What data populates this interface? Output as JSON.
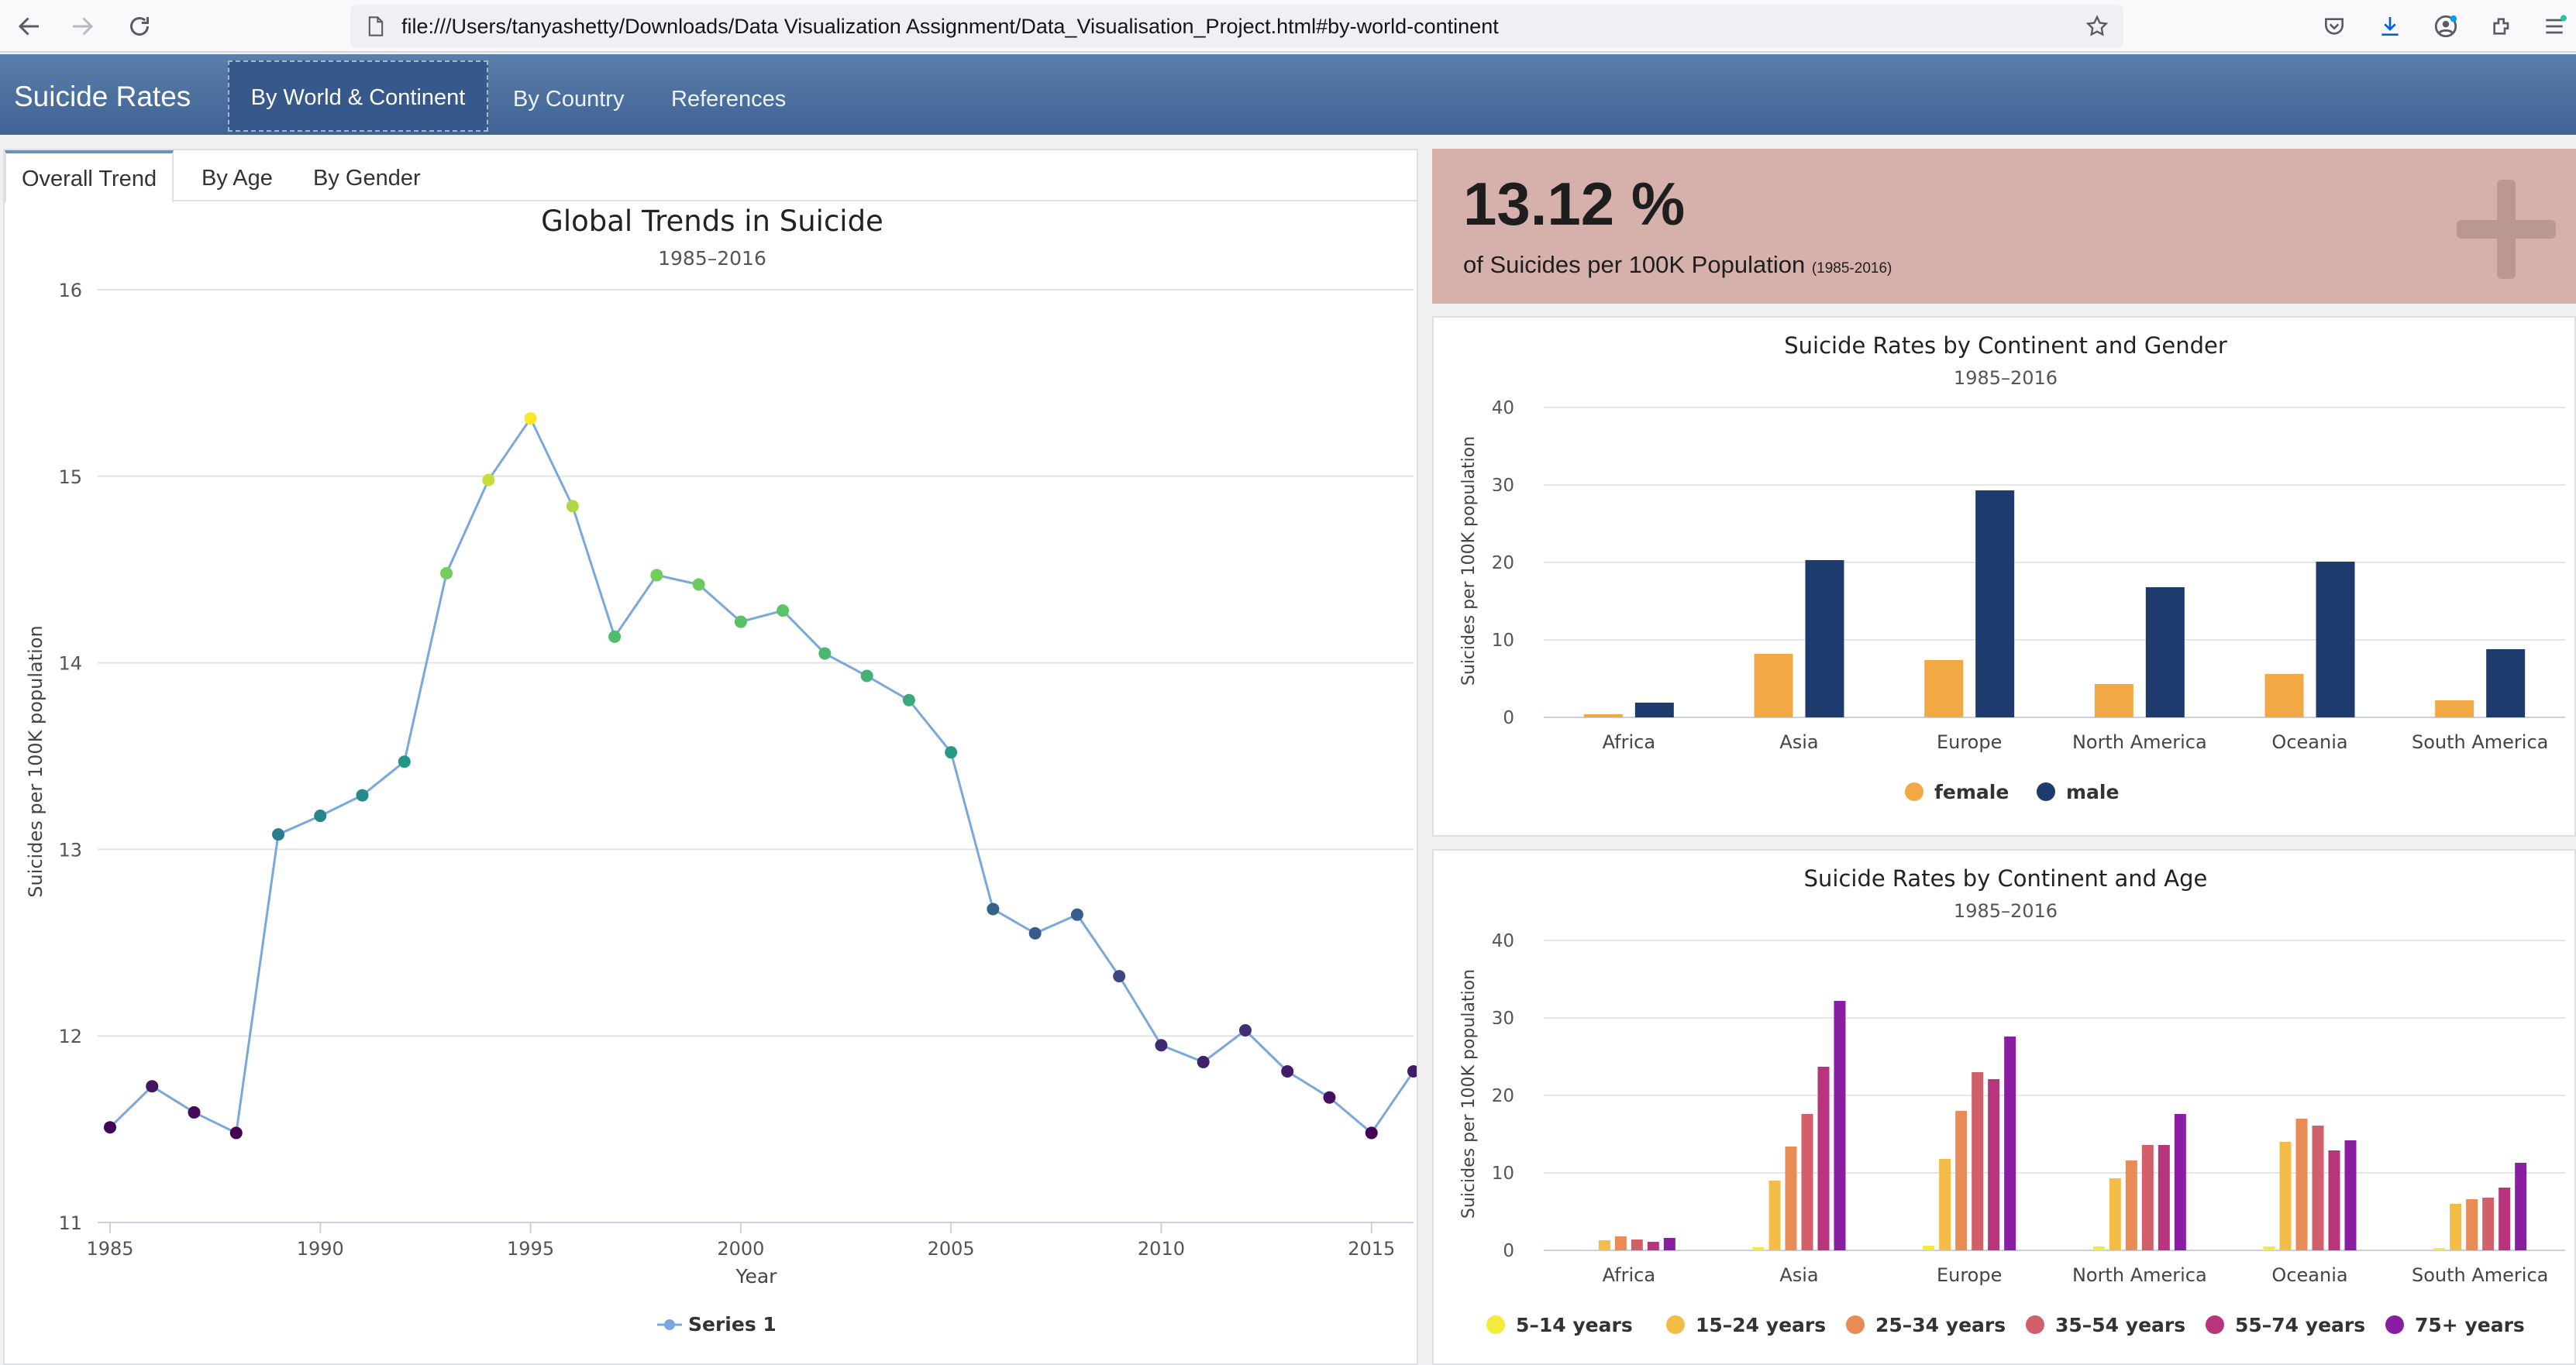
{
  "browser": {
    "url": "file:///Users/tanyashetty/Downloads/Data Visualization Assignment/Data_Visualisation_Project.html#by-world-continent"
  },
  "navbar": {
    "brand": "Suicide Rates",
    "links": [
      "By World & Continent",
      "By Country",
      "References"
    ],
    "active": "By World & Continent"
  },
  "left_panel": {
    "tabs": [
      "Overall Trend",
      "By Age",
      "By Gender"
    ],
    "active_tab": "Overall Trend"
  },
  "stat": {
    "value": "13.12 %",
    "caption": "of Suicides per 100K Population",
    "range": "(1985-2016)"
  },
  "chart_data": [
    {
      "type": "line",
      "title": "Global Trends in Suicide",
      "subtitle": "1985–2016",
      "xlabel": "Year",
      "ylabel": "Suicides per 100K population",
      "xlim": [
        1985,
        2016
      ],
      "ylim": [
        11,
        16
      ],
      "xticks": [
        "1985",
        "1990",
        "1995",
        "2000",
        "2005",
        "2010",
        "2015"
      ],
      "yticks": [
        "11",
        "12",
        "13",
        "14",
        "15",
        "16"
      ],
      "grid": true,
      "legend": "bottom-center",
      "series": [
        {
          "name": "Series 1",
          "x": [
            1985,
            1986,
            1987,
            1988,
            1989,
            1990,
            1991,
            1992,
            1993,
            1994,
            1995,
            1996,
            1997,
            1998,
            1999,
            2000,
            2001,
            2002,
            2003,
            2004,
            2005,
            2006,
            2007,
            2008,
            2009,
            2010,
            2011,
            2012,
            2013,
            2014,
            2015,
            2016
          ],
          "y": [
            11.51,
            11.73,
            11.59,
            11.48,
            13.08,
            13.18,
            13.29,
            13.47,
            14.48,
            14.98,
            15.31,
            14.84,
            14.14,
            14.47,
            14.42,
            14.22,
            14.28,
            14.05,
            13.93,
            13.8,
            13.52,
            12.68,
            12.55,
            12.65,
            12.32,
            11.95,
            11.86,
            12.03,
            11.81,
            11.67,
            11.48,
            11.81
          ]
        }
      ],
      "line_color": "#7aa8dc"
    },
    {
      "type": "bar",
      "title": "Suicide Rates by Continent and Gender",
      "subtitle": "1985–2016",
      "ylabel": "Suicides per 100K population",
      "categories": [
        "Africa",
        "Asia",
        "Europe",
        "North America",
        "Oceania",
        "South America"
      ],
      "ylim": [
        0,
        40
      ],
      "yticks": [
        "0",
        "10",
        "20",
        "30",
        "40"
      ],
      "grid": true,
      "legend": "bottom-center",
      "series": [
        {
          "name": "female",
          "color": "#f3a846",
          "values": [
            0.4,
            8.2,
            7.4,
            4.3,
            5.6,
            2.2
          ]
        },
        {
          "name": "male",
          "color": "#1d3c6d",
          "values": [
            1.9,
            20.3,
            29.3,
            16.8,
            20.1,
            8.8
          ]
        }
      ]
    },
    {
      "type": "bar",
      "title": "Suicide Rates by Continent and Age",
      "subtitle": "1985–2016",
      "ylabel": "Suicides per 100K population",
      "categories": [
        "Africa",
        "Asia",
        "Europe",
        "North America",
        "Oceania",
        "South America"
      ],
      "ylim": [
        0,
        40
      ],
      "yticks": [
        "0",
        "10",
        "20",
        "30",
        "40"
      ],
      "grid": true,
      "legend": "bottom-center",
      "series": [
        {
          "name": "5–14 years",
          "color": "#f4ea3c",
          "values": [
            0.1,
            0.4,
            0.6,
            0.5,
            0.5,
            0.3
          ]
        },
        {
          "name": "15–24 years",
          "color": "#f2bc47",
          "values": [
            1.3,
            9.0,
            11.8,
            9.3,
            14.0,
            6.0
          ]
        },
        {
          "name": "25–34 years",
          "color": "#e98b55",
          "values": [
            1.8,
            13.4,
            18.0,
            11.6,
            17.0,
            6.6
          ]
        },
        {
          "name": "35–54 years",
          "color": "#d1606b",
          "values": [
            1.4,
            17.6,
            23.0,
            13.6,
            16.1,
            6.8
          ]
        },
        {
          "name": "55–74 years",
          "color": "#b8357e",
          "values": [
            1.1,
            23.7,
            22.1,
            13.6,
            12.9,
            8.1
          ]
        },
        {
          "name": "75+ years",
          "color": "#8a1ea2",
          "values": [
            1.6,
            32.2,
            27.6,
            17.6,
            14.2,
            11.3
          ]
        }
      ]
    }
  ]
}
